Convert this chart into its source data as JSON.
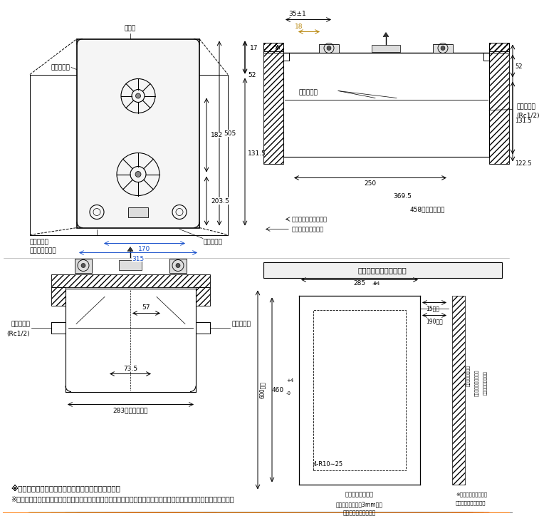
{
  "bg_color": "#ffffff",
  "lc": "#000000",
  "footer1": "※単体設置タイプにつきオーブン接続はできません。",
  "footer2": "※本機器は防火性能評定品であり、周囲に可燃物がある場合は防火性能評定品ラベル内容に従って設置してください。"
}
